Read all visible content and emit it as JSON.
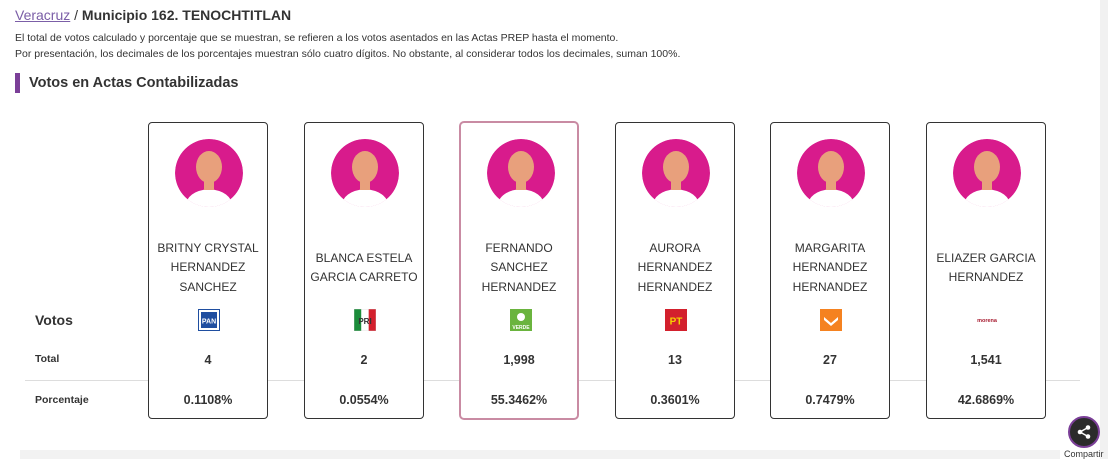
{
  "breadcrumb": {
    "link": "Veracruz",
    "separator": " / ",
    "current": "Municipio 162. TENOCHTITLAN"
  },
  "info": {
    "line1": "El total de votos calculado y porcentaje que se muestran, se refieren a los votos asentados en las Actas PREP hasta el momento.",
    "line2": "Por presentación, los decimales de los porcentajes muestran sólo cuatro dígitos. No obstante, al considerar todos los decimales, suman 100%."
  },
  "section_title": "Votos en Actas Contabilizadas",
  "row_labels": {
    "votos": "Votos",
    "total": "Total",
    "porcentaje": "Porcentaje"
  },
  "colors": {
    "accent": "#7b3f98",
    "avatar": "#d81b8c",
    "highlight_border": "#c98ba3"
  },
  "candidates": [
    {
      "name": "BRITNY CRYSTAL HERNANDEZ SANCHEZ",
      "party_logo": "pan-logo",
      "logo_text": "PAN",
      "total": "4",
      "percent": "0.1108%"
    },
    {
      "name": "BLANCA ESTELA GARCIA CARRETO",
      "party_logo": "pri-logo",
      "logo_text": "PRI",
      "total": "2",
      "percent": "0.0554%"
    },
    {
      "name": "FERNANDO SANCHEZ HERNANDEZ",
      "party_logo": "verde-logo",
      "logo_text": "VERDE",
      "total": "1,998",
      "percent": "55.3462%"
    },
    {
      "name": "AURORA HERNANDEZ HERNANDEZ",
      "party_logo": "pt-logo",
      "logo_text": "PT",
      "total": "13",
      "percent": "0.3601%"
    },
    {
      "name": "MARGARITA HERNANDEZ HERNANDEZ",
      "party_logo": "mc-logo",
      "logo_text": "",
      "total": "27",
      "percent": "0.7479%"
    },
    {
      "name": "ELIAZER GARCIA HERNANDEZ",
      "party_logo": "morena-logo",
      "logo_text": "morena",
      "total": "1,541",
      "percent": "42.6869%"
    }
  ],
  "share": {
    "label": "Compartir",
    "icon": "share-icon"
  }
}
